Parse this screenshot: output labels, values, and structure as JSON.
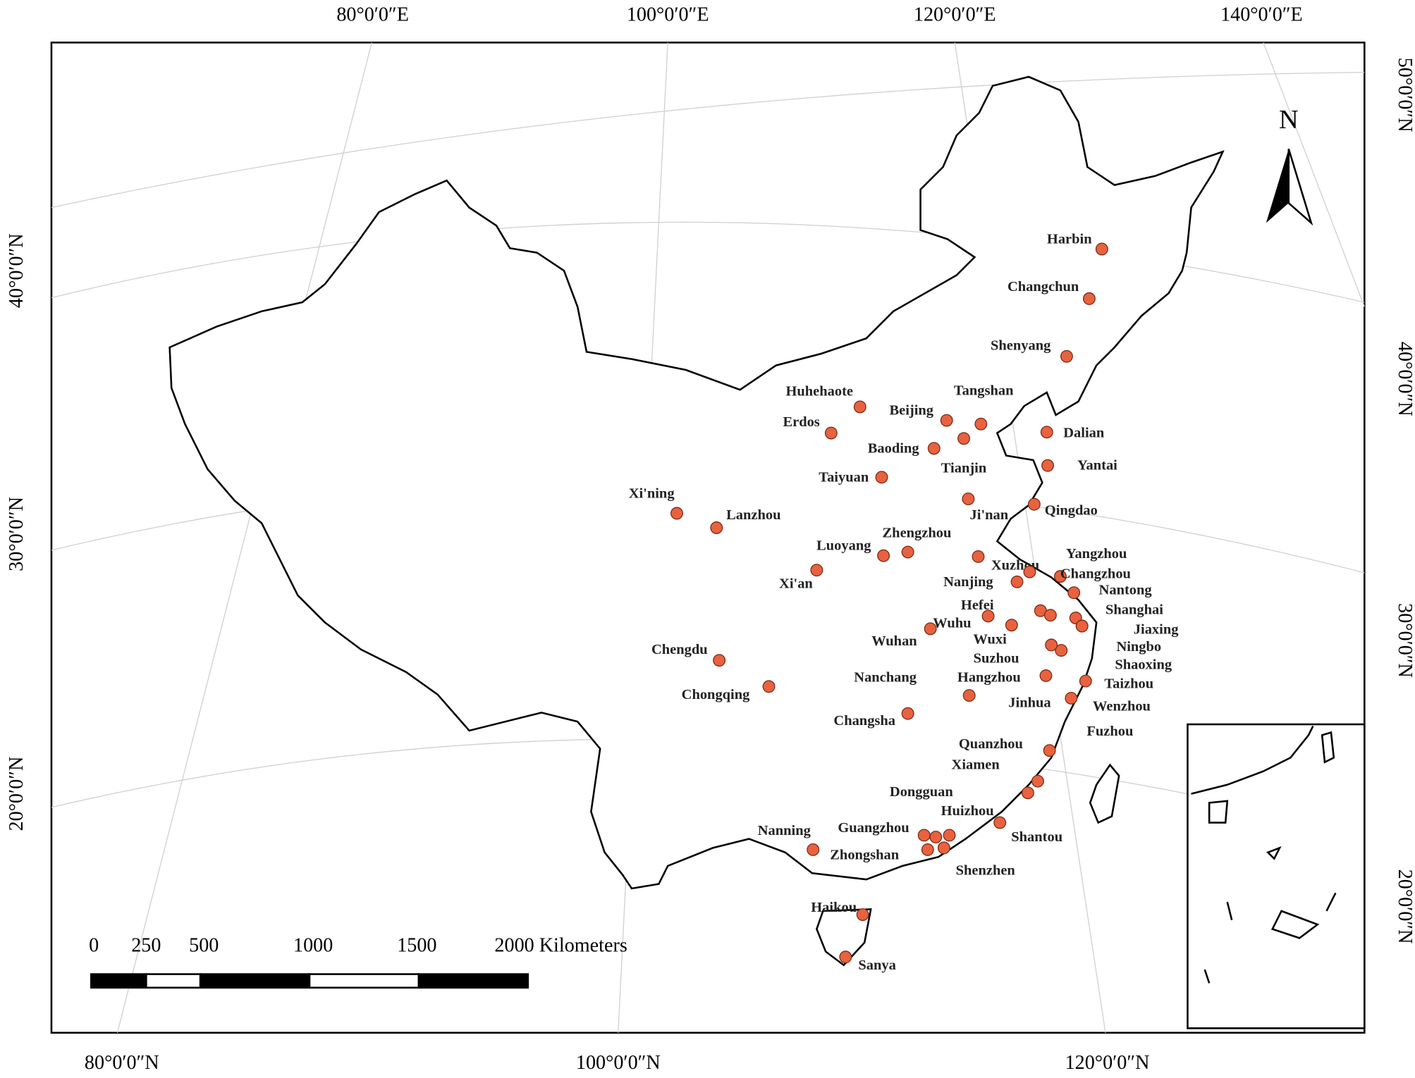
{
  "axis_labels": {
    "top": [
      "80°0′0″E",
      "100°0′0″E",
      "120°0′0″E",
      "140°0′0″E"
    ],
    "right": [
      "50°0′0″N",
      "40°0′0″N",
      "30°0′0″N",
      "20°0′0″N"
    ],
    "left": [
      "40°0′0″N",
      "30°0′0″N",
      "20°0′0″N"
    ],
    "bottom": [
      "80°0′0″N",
      "100°0′0″N",
      "120°0′0″N"
    ]
  },
  "north_label": "N",
  "scale_bar": {
    "labels": [
      "0",
      "250",
      "500",
      "1000",
      "1500",
      "2000 Kilometers"
    ]
  },
  "cities": [
    "Harbin",
    "Changchun",
    "Shenyang",
    "Huhehaote",
    "Beijing",
    "Tangshan",
    "Erdos",
    "Dalian",
    "Tianjin",
    "Baoding",
    "Yantai",
    "Taiyuan",
    "Ji'nan",
    "Qingdao",
    "Xi'ning",
    "Lanzhou",
    "Zhengzhou",
    "Luoyang",
    "Xuzhou",
    "Xi'an",
    "Yangzhou",
    "Changzhou",
    "Nanjing",
    "Nantong",
    "Hefei",
    "Shanghai",
    "Wuhu",
    "Jiaxing",
    "Wuxi",
    "Ningbo",
    "Wuhan",
    "Suzhou",
    "Shaoxing",
    "Hangzhou",
    "Taizhou",
    "Chengdu",
    "Jinhua",
    "Wenzhou",
    "Nanchang",
    "Chongqing",
    "Changsha",
    "Fuzhou",
    "Quanzhou",
    "Xiamen",
    "Dongguan",
    "Huizhou",
    "Shantou",
    "Guangzhou",
    "Nanning",
    "Zhongshan",
    "Shenzhen",
    "Haikou",
    "Sanya"
  ]
}
